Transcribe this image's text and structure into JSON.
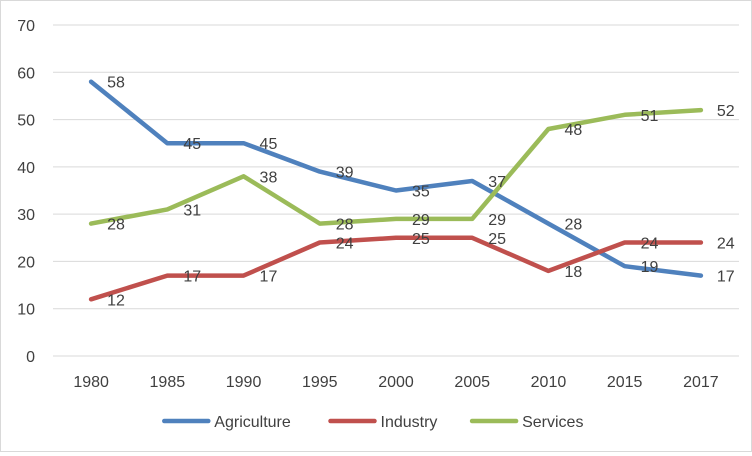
{
  "chart_data": {
    "type": "line",
    "categories": [
      "1980",
      "1985",
      "1990",
      "1995",
      "2000",
      "2005",
      "2010",
      "2015",
      "2017"
    ],
    "ylim": [
      0,
      70
    ],
    "yticks": [
      0,
      10,
      20,
      30,
      40,
      50,
      60,
      70
    ],
    "grid": "horizontal",
    "legend": "bottom",
    "data_labels": true,
    "series": [
      {
        "name": "Agriculture",
        "color": "#4f81bd",
        "values": [
          58,
          45,
          45,
          39,
          35,
          37,
          28,
          19,
          17
        ]
      },
      {
        "name": "Industry",
        "color": "#c0504d",
        "values": [
          12,
          17,
          17,
          24,
          25,
          25,
          18,
          24,
          24
        ]
      },
      {
        "name": "Services",
        "color": "#9bbb59",
        "values": [
          28,
          31,
          38,
          28,
          29,
          29,
          48,
          51,
          52
        ]
      }
    ]
  }
}
